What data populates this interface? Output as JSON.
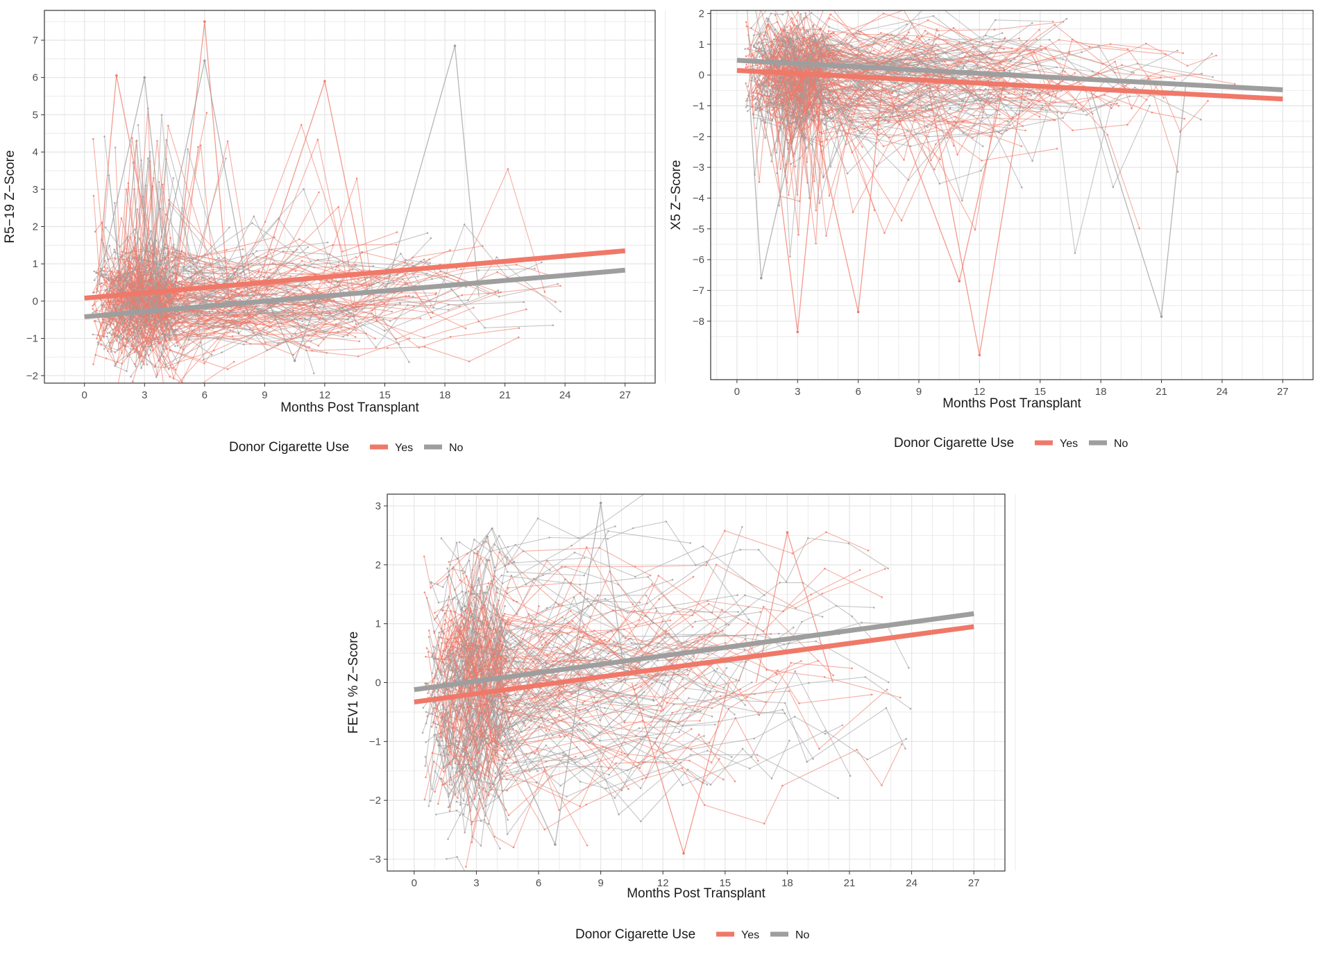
{
  "colors": {
    "yes": "#F07868",
    "no": "#9E9E9E",
    "grid": "#E6E6E6",
    "panel_border": "#333333"
  },
  "chart_data": [
    {
      "id": "r519",
      "type": "line",
      "title": "",
      "xlabel": "Months Post Transplant",
      "ylabel": "R5−19  Z−Score",
      "xlim": [
        -2,
        28.5
      ],
      "ylim": [
        -2.2,
        7.8
      ],
      "xticks": [
        0,
        3,
        6,
        9,
        12,
        15,
        18,
        21,
        24,
        27
      ],
      "xtick_labels": [
        "0",
        "3",
        "6",
        "9",
        "12",
        "15",
        "18",
        "21",
        "24",
        "27"
      ],
      "yticks": [
        -2,
        -1,
        0,
        1,
        2,
        3,
        4,
        5,
        6,
        7
      ],
      "ytick_labels": [
        "−2",
        "−1",
        "0",
        "1",
        "2",
        "3",
        "4",
        "5",
        "6",
        "7"
      ],
      "grid": true,
      "legend": {
        "title": "Donor Cigarette Use",
        "entries": [
          "Yes",
          "No"
        ],
        "position": "bottom"
      },
      "series": [
        {
          "name": "Yes",
          "trend": {
            "x": [
              0,
              27
            ],
            "y": [
              0.08,
              1.35
            ]
          }
        },
        {
          "name": "No",
          "trend": {
            "x": [
              0,
              27
            ],
            "y": [
              -0.42,
              0.83
            ]
          }
        }
      ],
      "individual_trajectories": {
        "approx_patients": 240,
        "time_range_months": [
          0.5,
          26
        ],
        "dense_range_y": [
          -1.3,
          1.5
        ],
        "notable_points": [
          {
            "series": "Yes",
            "x": 6,
            "y": 7.5
          },
          {
            "series": "No",
            "x": 6,
            "y": 6.45
          },
          {
            "series": "No",
            "x": 18.5,
            "y": 6.85
          },
          {
            "series": "Yes",
            "x": 1.6,
            "y": 6.05
          },
          {
            "series": "No",
            "x": 3,
            "y": 6.0
          },
          {
            "series": "Yes",
            "x": 12,
            "y": 5.9
          },
          {
            "series": "No",
            "x": 10.5,
            "y": -1.6
          }
        ]
      }
    },
    {
      "id": "x5",
      "type": "line",
      "title": "",
      "xlabel": "Months Post Transplant",
      "ylabel": "X5  Z−Score",
      "xlim": [
        -1.3,
        28.5
      ],
      "ylim": [
        -9.9,
        2.1
      ],
      "xticks": [
        0,
        3,
        6,
        9,
        12,
        15,
        18,
        21,
        24,
        27
      ],
      "xtick_labels": [
        "0",
        "3",
        "6",
        "9",
        "12",
        "15",
        "18",
        "21",
        "24",
        "27"
      ],
      "yticks": [
        -8,
        -7,
        -6,
        -5,
        -4,
        -3,
        -2,
        -1,
        0,
        1,
        2
      ],
      "ytick_labels": [
        "−8",
        "−7",
        "−6",
        "−5",
        "−4",
        "−3",
        "−2",
        "−1",
        "0",
        "1",
        "2"
      ],
      "grid": true,
      "legend": {
        "title": "Donor Cigarette Use",
        "entries": [
          "Yes",
          "No"
        ],
        "position": "bottom"
      },
      "series": [
        {
          "name": "Yes",
          "trend": {
            "x": [
              0,
              27
            ],
            "y": [
              0.15,
              -0.78
            ]
          }
        },
        {
          "name": "No",
          "trend": {
            "x": [
              0,
              27
            ],
            "y": [
              0.48,
              -0.48
            ]
          }
        }
      ],
      "individual_trajectories": {
        "approx_patients": 240,
        "time_range_months": [
          0.5,
          26
        ],
        "dense_range_y": [
          -2.5,
          1.3
        ],
        "notable_points": [
          {
            "series": "Yes",
            "x": 3,
            "y": -8.35
          },
          {
            "series": "Yes",
            "x": 12,
            "y": -9.1
          },
          {
            "series": "No",
            "x": 21,
            "y": -7.85
          },
          {
            "series": "No",
            "x": 1.2,
            "y": -6.6
          },
          {
            "series": "Yes",
            "x": 6,
            "y": -7.7
          },
          {
            "series": "Yes",
            "x": 11,
            "y": -6.7
          }
        ]
      }
    },
    {
      "id": "fev1",
      "type": "line",
      "title": "",
      "xlabel": "Months Post Transplant",
      "ylabel": "FEV1 %  Z−Score",
      "xlim": [
        -1.3,
        28.5
      ],
      "ylim": [
        -3.2,
        3.2
      ],
      "xticks": [
        0,
        3,
        6,
        9,
        12,
        15,
        18,
        21,
        24,
        27
      ],
      "xtick_labels": [
        "0",
        "3",
        "6",
        "9",
        "12",
        "15",
        "18",
        "21",
        "24",
        "27"
      ],
      "yticks": [
        -3,
        -2,
        -1,
        0,
        1,
        2,
        3
      ],
      "ytick_labels": [
        "−3",
        "−2",
        "−1",
        "0",
        "1",
        "2",
        "3"
      ],
      "grid": true,
      "legend": {
        "title": "Donor Cigarette Use",
        "entries": [
          "Yes",
          "No"
        ],
        "position": "bottom"
      },
      "series": [
        {
          "name": "Yes",
          "trend": {
            "x": [
              0,
              27
            ],
            "y": [
              -0.33,
              0.95
            ]
          }
        },
        {
          "name": "No",
          "trend": {
            "x": [
              0,
              27
            ],
            "y": [
              -0.12,
              1.17
            ]
          }
        }
      ],
      "individual_trajectories": {
        "approx_patients": 240,
        "time_range_months": [
          0.5,
          26
        ],
        "dense_range_y": [
          -2.2,
          2.5
        ],
        "notable_points": [
          {
            "series": "No",
            "x": 9,
            "y": 3.05
          },
          {
            "series": "Yes",
            "x": 13,
            "y": -2.9
          },
          {
            "series": "No",
            "x": 6.8,
            "y": -2.75
          },
          {
            "series": "Yes",
            "x": 18,
            "y": 2.55
          }
        ]
      }
    }
  ]
}
